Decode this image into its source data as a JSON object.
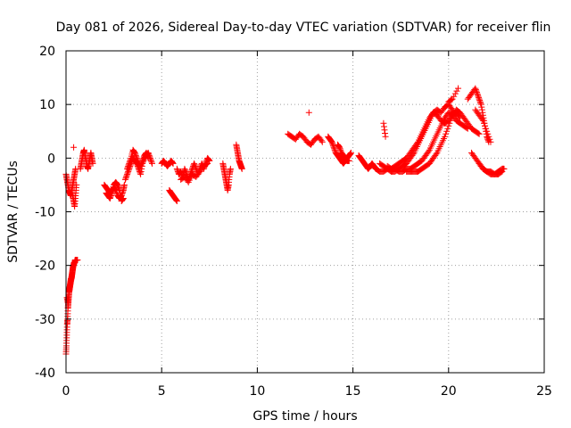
{
  "chart_data": {
    "type": "scatter",
    "title": "Day 081 of 2026, Sidereal Day-to-day VTEC variation (SDTVAR) for receiver flin",
    "xlabel": "GPS time / hours",
    "ylabel": "SDTVAR / TECUs",
    "xlim": [
      0,
      25
    ],
    "ylim": [
      -40,
      20
    ],
    "xticks": [
      0,
      5,
      10,
      15,
      20,
      25
    ],
    "yticks": [
      -40,
      -30,
      -20,
      -10,
      0,
      10,
      20
    ],
    "grid": true,
    "marker": "plus",
    "color": "#ff0000",
    "segments": [
      {
        "x": [
          0.0,
          0.05,
          0.1,
          0.15,
          0.2,
          0.25,
          0.3,
          0.35,
          0.4,
          0.45,
          0.5
        ],
        "y": [
          -3,
          -4,
          -5,
          -6,
          -6.5,
          -7,
          -6,
          -5,
          -4,
          -3,
          -2
        ]
      },
      {
        "x": [
          0.3,
          0.35,
          0.4,
          0.45,
          0.5,
          0.55
        ],
        "y": [
          -6,
          -7,
          -8,
          -9,
          -7,
          -5
        ]
      },
      {
        "x": [
          0.4
        ],
        "y": [
          2
        ]
      },
      {
        "x": [
          0.0,
          0.02,
          0.04,
          0.06,
          0.08,
          0.1,
          0.12,
          0.14,
          0.16,
          0.18,
          0.2,
          0.22,
          0.24,
          0.26,
          0.28,
          0.3,
          0.32,
          0.34,
          0.36,
          0.38,
          0.4,
          0.42,
          0.45,
          0.48,
          0.5,
          0.55,
          0.6
        ],
        "y": [
          -36.5,
          -35,
          -33,
          -31,
          -30,
          -28,
          -27,
          -26,
          -25,
          -24.5,
          -24,
          -23.5,
          -23,
          -22.5,
          -22.5,
          -22,
          -21.5,
          -21,
          -20.5,
          -20,
          -20,
          -19.5,
          -19.5,
          -19,
          -19,
          -19,
          -19
        ]
      },
      {
        "x": [
          0.05,
          0.1,
          0.15,
          0.2,
          0.25,
          0.3
        ],
        "y": [
          -26,
          -27,
          -25,
          -24,
          -23,
          -22
        ]
      },
      {
        "x": [
          0.75,
          0.8,
          0.85,
          0.9,
          0.95,
          1.0,
          1.05,
          1.1,
          1.15,
          1.2,
          1.25,
          1.3,
          1.35,
          1.4
        ],
        "y": [
          -2,
          -1,
          0,
          1,
          1.5,
          0.5,
          -0.5,
          -1.5,
          -2,
          -1,
          0,
          1,
          0,
          -1
        ]
      },
      {
        "x": [
          2.0,
          2.1,
          2.2,
          2.3,
          2.4,
          2.5,
          2.6,
          2.7,
          2.8,
          2.9,
          3.0,
          3.05
        ],
        "y": [
          -5,
          -5.5,
          -6,
          -6.5,
          -6,
          -5.5,
          -6,
          -7,
          -7.5,
          -7,
          -6,
          -5
        ]
      },
      {
        "x": [
          2.1,
          2.2,
          2.3,
          2.4,
          2.5,
          2.6,
          2.7,
          2.8,
          2.9,
          3.0
        ],
        "y": [
          -6.5,
          -7,
          -7.5,
          -6.5,
          -5,
          -4.5,
          -5,
          -6,
          -8,
          -7.5
        ]
      },
      {
        "x": [
          3.1,
          3.2,
          3.3,
          3.4,
          3.5,
          3.6,
          3.7,
          3.8,
          3.9,
          4.0,
          4.1,
          4.2,
          4.3,
          4.4,
          4.5
        ],
        "y": [
          -4,
          -3,
          -2,
          -1,
          0,
          -0.5,
          -1,
          -2,
          -3,
          -1,
          0,
          0.5,
          1,
          0,
          -1
        ]
      },
      {
        "x": [
          3.2,
          3.3,
          3.4,
          3.5,
          3.6,
          3.7,
          3.8,
          3.9,
          4.0,
          4.1,
          4.2,
          4.3
        ],
        "y": [
          -2,
          -1,
          0,
          1.5,
          1,
          0,
          -1,
          -1.5,
          -0.5,
          0.5,
          1,
          0
        ]
      },
      {
        "x": [
          5.0,
          5.1,
          5.2,
          5.3,
          5.4,
          5.5,
          5.6
        ],
        "y": [
          -1,
          -0.5,
          -1,
          -1.5,
          -1,
          -0.5,
          -1
        ]
      },
      {
        "x": [
          5.4,
          5.5,
          5.6,
          5.7,
          5.8
        ],
        "y": [
          -6,
          -6.5,
          -7,
          -7.5,
          -8
        ]
      },
      {
        "x": [
          5.8,
          5.9,
          6.0,
          6.1,
          6.2,
          6.3,
          6.4,
          6.5,
          6.6,
          6.7,
          6.8,
          6.9,
          7.0,
          7.1,
          7.2,
          7.3,
          7.4,
          7.5
        ],
        "y": [
          -2,
          -3,
          -2.5,
          -3.5,
          -2,
          -3,
          -4,
          -3,
          -2,
          -1,
          -2,
          -3,
          -2,
          -1,
          -2,
          -1,
          0,
          -0.5
        ]
      },
      {
        "x": [
          6.0,
          6.2,
          6.4,
          6.6,
          6.8,
          7.0,
          7.2,
          7.4
        ],
        "y": [
          -4,
          -3.5,
          -4.5,
          -3,
          -3.5,
          -2.5,
          -1.5,
          -1
        ]
      },
      {
        "x": [
          8.2,
          8.25,
          8.3,
          8.35,
          8.4,
          8.45,
          8.5,
          8.55,
          8.6
        ],
        "y": [
          -1,
          -2,
          -3,
          -4,
          -5,
          -6,
          -5,
          -3,
          -2
        ]
      },
      {
        "x": [
          8.9,
          8.95,
          9.0,
          9.05,
          9.1,
          9.15,
          9.2
        ],
        "y": [
          2.5,
          1.5,
          0.5,
          -0.5,
          -1,
          -1.5,
          -2
        ]
      },
      {
        "x": [
          11.6,
          11.8,
          12.0,
          12.2,
          12.4,
          12.6,
          12.8,
          13.0,
          13.2,
          13.4
        ],
        "y": [
          4.5,
          4,
          3.5,
          4.5,
          4,
          3,
          2.5,
          3.5,
          4,
          3
        ]
      },
      {
        "x": [
          12.7
        ],
        "y": [
          8.5
        ]
      },
      {
        "x": [
          13.7,
          13.8,
          13.9,
          14.0,
          14.1,
          14.2,
          14.3,
          14.4,
          14.5,
          14.6,
          14.7,
          14.8,
          14.9
        ],
        "y": [
          4,
          3.5,
          3,
          2,
          1,
          0.5,
          0,
          -0.5,
          -1,
          -0.5,
          0,
          0.5,
          1
        ]
      },
      {
        "x": [
          14.2,
          14.3,
          14.4,
          14.5,
          14.6,
          14.7,
          14.8
        ],
        "y": [
          2.5,
          2,
          1,
          0.5,
          0,
          -0.5,
          -0.5
        ]
      },
      {
        "x": [
          15.3,
          15.4,
          15.5,
          15.6,
          15.7,
          15.8,
          15.9,
          16.0,
          16.1,
          16.2
        ],
        "y": [
          0.5,
          0,
          -0.5,
          -1,
          -1.5,
          -2,
          -1.5,
          -1,
          -1.5,
          -2
        ]
      },
      {
        "x": [
          16.2,
          16.4,
          16.6,
          16.8,
          17.0,
          17.2,
          17.4,
          17.6,
          17.8,
          18.0,
          18.2,
          18.4,
          18.6,
          18.8,
          19.0,
          19.2,
          19.4,
          19.6,
          19.8,
          20.0,
          20.2,
          20.4,
          20.6
        ],
        "y": [
          -2,
          -2.5,
          -2.5,
          -2,
          -2,
          -1.5,
          -1,
          -0.5,
          0,
          1,
          2,
          3,
          4.5,
          6,
          7.5,
          8.5,
          8,
          7,
          6.5,
          7,
          8,
          8.5,
          7.5
        ]
      },
      {
        "x": [
          16.4,
          16.6,
          16.8,
          17.0,
          17.2,
          17.4,
          17.6,
          17.8,
          18.0,
          18.2,
          18.4,
          18.6,
          18.8,
          19.0,
          19.2,
          19.4,
          19.6,
          19.8,
          20.0,
          20.2,
          20.4
        ],
        "y": [
          -1,
          -1.5,
          -2,
          -2.5,
          -2.5,
          -2,
          -1.5,
          -1,
          0,
          1,
          2.5,
          4,
          5.5,
          7,
          8.5,
          9,
          8.5,
          9.5,
          10,
          9,
          8
        ]
      },
      {
        "x": [
          16.8,
          17.0,
          17.2,
          17.4,
          17.6,
          17.8,
          18.0,
          18.2,
          18.4,
          18.6,
          18.8,
          19.0,
          19.2,
          19.4,
          19.6,
          19.8,
          20.0,
          20.2,
          20.4,
          20.6,
          20.8,
          21.0
        ],
        "y": [
          -1.5,
          -2,
          -2,
          -2.5,
          -2.5,
          -2,
          -2,
          -1.5,
          -1,
          -0.5,
          0.5,
          1.5,
          3,
          4.5,
          6,
          7.5,
          8.5,
          8,
          7,
          6.5,
          6,
          5.5
        ]
      },
      {
        "x": [
          17.8,
          18.0,
          18.2,
          18.4,
          18.6,
          18.8,
          19.0,
          19.2,
          19.4,
          19.6,
          19.8,
          20.0,
          20.2,
          20.4,
          20.6,
          20.8,
          21.0,
          21.2,
          21.4,
          21.6
        ],
        "y": [
          -2.5,
          -2.5,
          -2.5,
          -2.5,
          -2,
          -1.5,
          -1,
          0,
          1,
          2.5,
          4,
          6,
          8,
          9,
          8.5,
          7.5,
          6.5,
          5.5,
          5,
          4.5
        ]
      },
      {
        "x": [
          16.6,
          16.7
        ],
        "y": [
          6.5,
          4
        ]
      },
      {
        "x": [
          20.0,
          20.2,
          20.5
        ],
        "y": [
          10.5,
          11,
          13
        ]
      },
      {
        "x": [
          21.0,
          21.2,
          21.4,
          21.5,
          21.6,
          21.7,
          21.8,
          21.9,
          22.0,
          22.1
        ],
        "y": [
          11,
          12,
          13,
          12,
          11,
          10,
          8,
          6,
          4,
          3
        ]
      },
      {
        "x": [
          21.4,
          21.6,
          21.8,
          22.0,
          22.2
        ],
        "y": [
          9,
          8,
          7,
          5,
          3
        ]
      },
      {
        "x": [
          21.2,
          21.4,
          21.6,
          21.8,
          22.0,
          22.2,
          22.4,
          22.6,
          22.8
        ],
        "y": [
          1,
          0,
          -1,
          -2,
          -2.5,
          -2.5,
          -3,
          -3,
          -2.5
        ]
      },
      {
        "x": [
          21.6,
          21.8,
          22.0,
          22.2,
          22.4,
          22.6,
          22.8,
          22.9
        ],
        "y": [
          -1,
          -2,
          -2.5,
          -3,
          -3,
          -2.5,
          -2,
          -2
        ]
      }
    ]
  }
}
